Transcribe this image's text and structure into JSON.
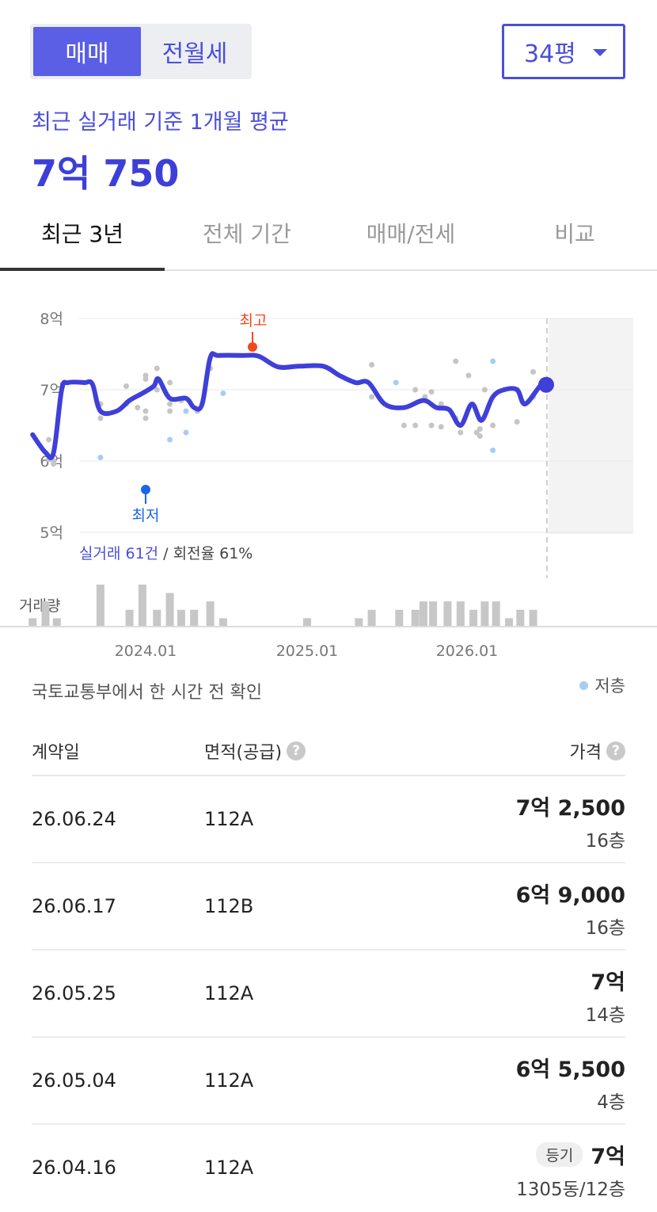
{
  "trade_toggle": {
    "active": "매매",
    "inactive": "전월세"
  },
  "area_select": {
    "value": "34평"
  },
  "summary": {
    "label": "최근 실거래 기준 1개월 평균",
    "price": "7억 750"
  },
  "tabs": [
    "최근 3년",
    "전체 기간",
    "매매/전세",
    "비교"
  ],
  "chart": {
    "y_labels": [
      "8억",
      "7억",
      "6억",
      "5억"
    ],
    "high_label": "최고",
    "low_label": "최저",
    "deal_count_label": "실거래 61건",
    "turnover_label": " / 회전율 61%",
    "volume_label": "거래량",
    "x_labels": [
      "2024.01",
      "2025.01",
      "2026.01"
    ]
  },
  "chart_data": {
    "type": "line",
    "y_unit": "억",
    "ylim": [
      5,
      8
    ],
    "x_ticks": [
      "2024.01",
      "2025.01",
      "2026.01"
    ],
    "series": [],
    "annotations": {
      "high": 7.6,
      "low": 5.6,
      "latest": 7.07
    },
    "deals": [
      [
        2023.4,
        6.3
      ],
      [
        2023.43,
        6.0
      ],
      [
        2023.43,
        5.96
      ],
      [
        2023.4,
        6.02
      ],
      [
        2023.72,
        6.05,
        "low"
      ],
      [
        2023.72,
        6.6
      ],
      [
        2023.72,
        6.8
      ],
      [
        2023.88,
        6.8
      ],
      [
        2023.88,
        7.05
      ],
      [
        2023.95,
        6.75
      ],
      [
        2024.0,
        6.7
      ],
      [
        2024.0,
        6.6
      ],
      [
        2024.0,
        7.2
      ],
      [
        2024.0,
        7.15
      ],
      [
        2024.07,
        7.3
      ],
      [
        2024.07,
        7.0
      ],
      [
        2024.15,
        7.1
      ],
      [
        2024.15,
        6.8
      ],
      [
        2024.15,
        6.7
      ],
      [
        2024.15,
        6.3,
        "low"
      ],
      [
        2024.22,
        6.85
      ],
      [
        2024.25,
        6.7,
        "low"
      ],
      [
        2024.25,
        6.4,
        "low"
      ],
      [
        2024.32,
        6.7
      ],
      [
        2024.4,
        7.3
      ],
      [
        2024.48,
        6.95,
        "low"
      ],
      [
        2025.4,
        7.35
      ],
      [
        2025.4,
        6.9
      ],
      [
        2025.55,
        7.1,
        "low"
      ],
      [
        2025.6,
        6.5
      ],
      [
        2025.67,
        7.0
      ],
      [
        2025.67,
        6.5
      ],
      [
        2025.73,
        6.9
      ],
      [
        2025.77,
        6.5
      ],
      [
        2025.77,
        6.97
      ],
      [
        2025.83,
        6.8
      ],
      [
        2025.83,
        6.48
      ],
      [
        2025.92,
        7.4
      ],
      [
        2025.92,
        6.6
      ],
      [
        2025.95,
        6.4
      ],
      [
        2026.0,
        7.2
      ],
      [
        2026.05,
        6.4
      ],
      [
        2026.07,
        6.45
      ],
      [
        2026.07,
        6.35
      ],
      [
        2026.1,
        7.0
      ],
      [
        2026.15,
        7.4,
        "low"
      ],
      [
        2026.15,
        6.5
      ],
      [
        2026.15,
        6.15,
        "low"
      ],
      [
        2026.3,
        6.55
      ],
      [
        2026.3,
        7.0
      ],
      [
        2026.4,
        7.25
      ],
      [
        2026.4,
        6.9
      ]
    ],
    "trend": [
      [
        2023.3,
        6.37
      ],
      [
        2023.38,
        6.12
      ],
      [
        2023.43,
        6.12
      ],
      [
        2023.48,
        7.0
      ],
      [
        2023.52,
        7.1
      ],
      [
        2023.62,
        7.1
      ],
      [
        2023.67,
        7.08
      ],
      [
        2023.72,
        6.7
      ],
      [
        2023.82,
        6.7
      ],
      [
        2023.9,
        6.85
      ],
      [
        2023.98,
        6.95
      ],
      [
        2024.05,
        7.05
      ],
      [
        2024.08,
        7.15
      ],
      [
        2024.15,
        6.88
      ],
      [
        2024.25,
        6.88
      ],
      [
        2024.3,
        6.75
      ],
      [
        2024.35,
        6.8
      ],
      [
        2024.4,
        7.45
      ],
      [
        2024.45,
        7.48
      ],
      [
        2024.6,
        7.48
      ],
      [
        2024.7,
        7.47
      ],
      [
        2024.82,
        7.32
      ],
      [
        2024.95,
        7.33
      ],
      [
        2025.1,
        7.33
      ],
      [
        2025.2,
        7.2
      ],
      [
        2025.3,
        7.1
      ],
      [
        2025.38,
        7.1
      ],
      [
        2025.48,
        6.8
      ],
      [
        2025.6,
        6.75
      ],
      [
        2025.72,
        6.85
      ],
      [
        2025.8,
        6.75
      ],
      [
        2025.88,
        6.72
      ],
      [
        2025.95,
        6.5
      ],
      [
        2026.02,
        6.8
      ],
      [
        2026.08,
        6.57
      ],
      [
        2026.15,
        6.9
      ],
      [
        2026.22,
        7.0
      ],
      [
        2026.3,
        7.0
      ],
      [
        2026.35,
        6.8
      ],
      [
        2026.45,
        7.07
      ],
      [
        2026.5,
        7.07
      ]
    ],
    "volume": [
      [
        2023.3,
        1
      ],
      [
        2023.38,
        3
      ],
      [
        2023.45,
        1
      ],
      [
        2023.72,
        5
      ],
      [
        2023.9,
        2
      ],
      [
        2023.98,
        5
      ],
      [
        2024.07,
        2
      ],
      [
        2024.15,
        4
      ],
      [
        2024.22,
        2
      ],
      [
        2024.3,
        2
      ],
      [
        2024.4,
        3
      ],
      [
        2024.48,
        1
      ],
      [
        2025.0,
        1
      ],
      [
        2025.32,
        1
      ],
      [
        2025.4,
        2
      ],
      [
        2025.57,
        2
      ],
      [
        2025.67,
        2
      ],
      [
        2025.72,
        3
      ],
      [
        2025.78,
        3
      ],
      [
        2025.87,
        3
      ],
      [
        2025.95,
        3
      ],
      [
        2026.03,
        2
      ],
      [
        2026.1,
        3
      ],
      [
        2026.17,
        3
      ],
      [
        2026.25,
        1
      ],
      [
        2026.32,
        2
      ],
      [
        2026.4,
        2
      ]
    ]
  },
  "source_note": "국토교통부에서 한 시간 전 확인",
  "legend": {
    "low_floor": "저층"
  },
  "table": {
    "headers": {
      "date": "계약일",
      "area": "면적(공급)",
      "price": "가격"
    },
    "help_glyph": "?",
    "rows": [
      {
        "date": "26.06.24",
        "area": "112A",
        "price": "7억 2,500",
        "floor": "16층"
      },
      {
        "date": "26.06.17",
        "area": "112B",
        "price": "6억 9,000",
        "floor": "16층"
      },
      {
        "date": "26.05.25",
        "area": "112A",
        "price": "7억",
        "floor": "14층"
      },
      {
        "date": "26.05.04",
        "area": "112A",
        "price": "6억 5,500",
        "floor": "4층"
      },
      {
        "date": "26.04.16",
        "area": "112A",
        "price": "7억",
        "floor": "1305동/12층",
        "badge": "등기"
      }
    ]
  },
  "colors": {
    "accent": "#4b4fd9",
    "trend_line": "#3f3fd9",
    "high": "#ef4a1c",
    "low": "#1a66e8",
    "deal_dot": "#c5c5c5",
    "low_floor_dot": "#a7cdf1",
    "volume_bar": "#c7c7c7"
  }
}
